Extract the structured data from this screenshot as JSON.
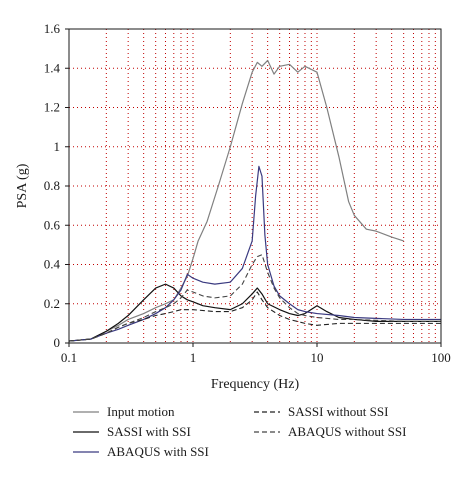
{
  "chart_data": {
    "type": "line",
    "xlabel": "Frequency (Hz)",
    "ylabel": "PSA (g)",
    "xscale": "log",
    "xlim": [
      0.1,
      100
    ],
    "ylim": [
      0,
      1.6
    ],
    "xticks": [
      0.1,
      1,
      10,
      100
    ],
    "xtick_labels": [
      "0.1",
      "1",
      "10",
      "100"
    ],
    "yticks": [
      0,
      0.2,
      0.4,
      0.6,
      0.8,
      1,
      1.2,
      1.4,
      1.6
    ],
    "ytick_labels": [
      "0",
      "0.2",
      "0.4",
      "0.6",
      "0.8",
      "1",
      "1.2",
      "1.4",
      "1.6"
    ],
    "grid": "dotted, at each decade subdivision",
    "legend_position": "below plot",
    "series": [
      {
        "name": "Input motion",
        "color": "#808080",
        "dash": "solid",
        "points": [
          [
            0.1,
            0.01
          ],
          [
            0.15,
            0.02
          ],
          [
            0.2,
            0.06
          ],
          [
            0.25,
            0.09
          ],
          [
            0.3,
            0.12
          ],
          [
            0.4,
            0.15
          ],
          [
            0.5,
            0.18
          ],
          [
            0.6,
            0.2
          ],
          [
            0.7,
            0.22
          ],
          [
            0.8,
            0.28
          ],
          [
            0.9,
            0.34
          ],
          [
            1.0,
            0.43
          ],
          [
            1.1,
            0.52
          ],
          [
            1.3,
            0.62
          ],
          [
            1.6,
            0.8
          ],
          [
            2.0,
            1.0
          ],
          [
            2.5,
            1.22
          ],
          [
            3.0,
            1.38
          ],
          [
            3.3,
            1.43
          ],
          [
            3.6,
            1.41
          ],
          [
            4.0,
            1.44
          ],
          [
            4.5,
            1.37
          ],
          [
            5.0,
            1.41
          ],
          [
            6.0,
            1.42
          ],
          [
            7.0,
            1.38
          ],
          [
            8.0,
            1.41
          ],
          [
            10.0,
            1.38
          ],
          [
            12.0,
            1.2
          ],
          [
            15.0,
            0.95
          ],
          [
            18.0,
            0.72
          ],
          [
            20.0,
            0.65
          ],
          [
            25.0,
            0.58
          ],
          [
            30.0,
            0.57
          ],
          [
            40.0,
            0.54
          ],
          [
            50.0,
            0.52
          ]
        ]
      },
      {
        "name": "SASSI with SSI",
        "color": "#111111",
        "dash": "solid",
        "points": [
          [
            0.1,
            0.01
          ],
          [
            0.15,
            0.02
          ],
          [
            0.2,
            0.06
          ],
          [
            0.25,
            0.1
          ],
          [
            0.3,
            0.14
          ],
          [
            0.4,
            0.22
          ],
          [
            0.5,
            0.28
          ],
          [
            0.6,
            0.3
          ],
          [
            0.7,
            0.28
          ],
          [
            0.8,
            0.24
          ],
          [
            0.9,
            0.22
          ],
          [
            1.0,
            0.21
          ],
          [
            1.2,
            0.19
          ],
          [
            1.5,
            0.18
          ],
          [
            2.0,
            0.17
          ],
          [
            2.5,
            0.2
          ],
          [
            3.0,
            0.25
          ],
          [
            3.3,
            0.28
          ],
          [
            3.6,
            0.25
          ],
          [
            4.0,
            0.2
          ],
          [
            5.0,
            0.17
          ],
          [
            6.0,
            0.15
          ],
          [
            7.0,
            0.14
          ],
          [
            8.0,
            0.15
          ],
          [
            10.0,
            0.19
          ],
          [
            12.0,
            0.16
          ],
          [
            15.0,
            0.13
          ],
          [
            20.0,
            0.12
          ],
          [
            30.0,
            0.11
          ],
          [
            50.0,
            0.11
          ],
          [
            100.0,
            0.11
          ]
        ]
      },
      {
        "name": "ABAQUS with SSI",
        "color": "#3a3a80",
        "dash": "solid",
        "points": [
          [
            0.1,
            0.01
          ],
          [
            0.15,
            0.02
          ],
          [
            0.2,
            0.05
          ],
          [
            0.25,
            0.07
          ],
          [
            0.3,
            0.09
          ],
          [
            0.4,
            0.12
          ],
          [
            0.5,
            0.15
          ],
          [
            0.6,
            0.18
          ],
          [
            0.7,
            0.22
          ],
          [
            0.8,
            0.27
          ],
          [
            0.9,
            0.35
          ],
          [
            1.0,
            0.33
          ],
          [
            1.2,
            0.31
          ],
          [
            1.5,
            0.3
          ],
          [
            2.0,
            0.31
          ],
          [
            2.5,
            0.38
          ],
          [
            3.0,
            0.52
          ],
          [
            3.2,
            0.75
          ],
          [
            3.4,
            0.9
          ],
          [
            3.6,
            0.85
          ],
          [
            3.8,
            0.55
          ],
          [
            4.0,
            0.4
          ],
          [
            4.5,
            0.29
          ],
          [
            5.0,
            0.24
          ],
          [
            6.0,
            0.2
          ],
          [
            7.0,
            0.17
          ],
          [
            8.0,
            0.16
          ],
          [
            10.0,
            0.15
          ],
          [
            15.0,
            0.14
          ],
          [
            20.0,
            0.13
          ],
          [
            50.0,
            0.12
          ],
          [
            100.0,
            0.12
          ]
        ]
      },
      {
        "name": "SASSI without SSI",
        "color": "#222222",
        "dash": "dashed",
        "points": [
          [
            0.1,
            0.01
          ],
          [
            0.15,
            0.02
          ],
          [
            0.2,
            0.05
          ],
          [
            0.25,
            0.08
          ],
          [
            0.3,
            0.1
          ],
          [
            0.4,
            0.12
          ],
          [
            0.5,
            0.14
          ],
          [
            0.6,
            0.15
          ],
          [
            0.7,
            0.16
          ],
          [
            0.8,
            0.17
          ],
          [
            1.0,
            0.17
          ],
          [
            1.5,
            0.16
          ],
          [
            2.0,
            0.16
          ],
          [
            2.5,
            0.18
          ],
          [
            3.0,
            0.22
          ],
          [
            3.3,
            0.26
          ],
          [
            3.6,
            0.22
          ],
          [
            4.0,
            0.18
          ],
          [
            5.0,
            0.14
          ],
          [
            6.0,
            0.12
          ],
          [
            8.0,
            0.1
          ],
          [
            10.0,
            0.09
          ],
          [
            15.0,
            0.1
          ],
          [
            20.0,
            0.1
          ],
          [
            50.0,
            0.1
          ],
          [
            100.0,
            0.1
          ]
        ]
      },
      {
        "name": "ABAQUS without SSI",
        "color": "#444444",
        "dash": "dashed",
        "points": [
          [
            0.1,
            0.01
          ],
          [
            0.15,
            0.02
          ],
          [
            0.2,
            0.05
          ],
          [
            0.25,
            0.08
          ],
          [
            0.3,
            0.1
          ],
          [
            0.4,
            0.13
          ],
          [
            0.5,
            0.16
          ],
          [
            0.6,
            0.18
          ],
          [
            0.7,
            0.2
          ],
          [
            0.8,
            0.23
          ],
          [
            0.9,
            0.27
          ],
          [
            1.0,
            0.26
          ],
          [
            1.2,
            0.24
          ],
          [
            1.5,
            0.23
          ],
          [
            2.0,
            0.24
          ],
          [
            2.5,
            0.3
          ],
          [
            3.0,
            0.4
          ],
          [
            3.3,
            0.44
          ],
          [
            3.6,
            0.45
          ],
          [
            4.0,
            0.36
          ],
          [
            4.5,
            0.28
          ],
          [
            5.0,
            0.23
          ],
          [
            6.0,
            0.18
          ],
          [
            7.0,
            0.15
          ],
          [
            8.0,
            0.14
          ],
          [
            10.0,
            0.13
          ],
          [
            15.0,
            0.12
          ],
          [
            20.0,
            0.12
          ],
          [
            50.0,
            0.11
          ],
          [
            100.0,
            0.11
          ]
        ]
      }
    ]
  }
}
